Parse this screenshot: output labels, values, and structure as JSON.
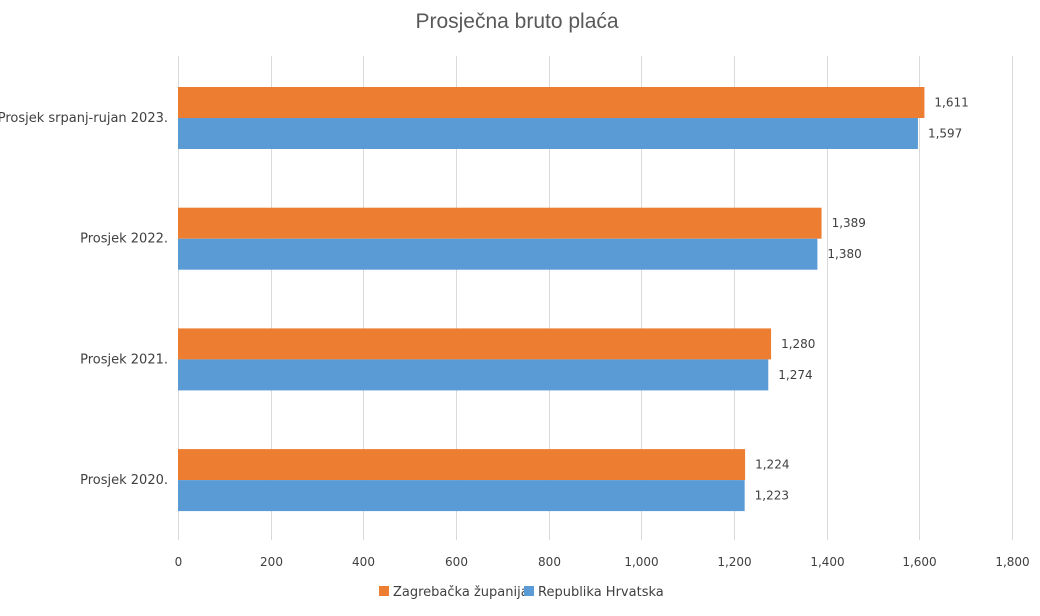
{
  "chart_data": {
    "type": "bar",
    "orientation": "horizontal",
    "title": "Prosječna bruto plaća",
    "categories": [
      "Prosjek srpanj-rujan 2023.",
      "Prosjek 2022.",
      "Prosjek 2021.",
      "Prosjek 2020."
    ],
    "series": [
      {
        "name": "Zagrebačka županija",
        "color": "#ED7D31",
        "values": [
          1611,
          1389,
          1280,
          1224
        ],
        "labels": [
          "1,611",
          "1,389",
          "1,280",
          "1,224"
        ]
      },
      {
        "name": "Republika Hrvatska",
        "color": "#5B9BD5",
        "values": [
          1597,
          1380,
          1274,
          1223
        ],
        "labels": [
          "1,597",
          "1,380",
          "1,274",
          "1,223"
        ]
      }
    ],
    "xlim": [
      0,
      1800
    ],
    "ticks": [
      0,
      200,
      400,
      600,
      800,
      1000,
      1200,
      1400,
      1600,
      1800
    ],
    "tick_labels": [
      "0",
      "200",
      "400",
      "600",
      "800",
      "1,000",
      "1,200",
      "1,400",
      "1,600",
      "1,800"
    ],
    "grid": true,
    "legend_position": "bottom"
  }
}
